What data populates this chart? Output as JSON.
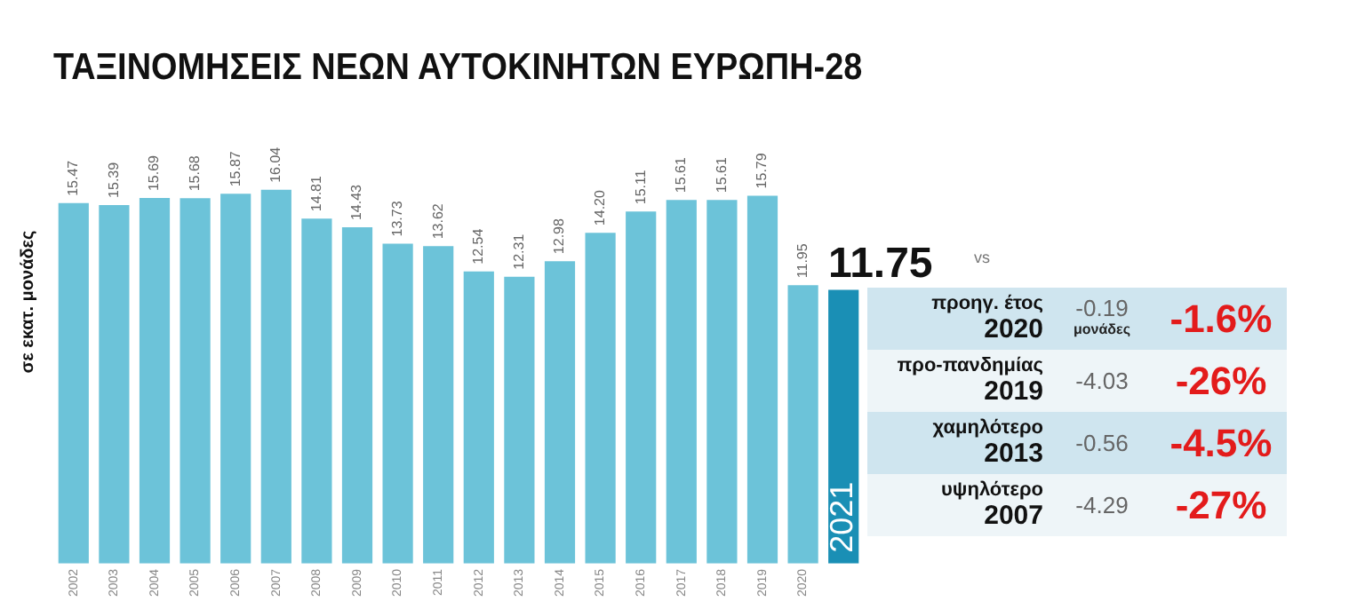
{
  "chart_data": {
    "type": "bar",
    "title": "ΤΑΞΙΝΟΜΗΣΕΙΣ ΝΕΩΝ ΑΥΤΟΚΙΝΗΤΩΝ ΕΥΡΩΠΗ-28",
    "ylabel": "σε εκατ. μονάδες",
    "categories": [
      "2002",
      "2003",
      "2004",
      "2005",
      "2006",
      "2007",
      "2008",
      "2009",
      "2010",
      "2011",
      "2012",
      "2013",
      "2014",
      "2015",
      "2016",
      "2017",
      "2018",
      "2019",
      "2020",
      "2021"
    ],
    "values": [
      15.47,
      15.39,
      15.69,
      15.68,
      15.87,
      16.04,
      14.81,
      14.43,
      13.73,
      13.62,
      12.54,
      12.31,
      12.98,
      14.2,
      15.11,
      15.61,
      15.61,
      15.79,
      11.95,
      11.75
    ],
    "colors": [
      "#6cc3d9",
      "#6cc3d9",
      "#6cc3d9",
      "#6cc3d9",
      "#6cc3d9",
      "#6cc3d9",
      "#6cc3d9",
      "#6cc3d9",
      "#6cc3d9",
      "#6cc3d9",
      "#6cc3d9",
      "#6cc3d9",
      "#6cc3d9",
      "#6cc3d9",
      "#6cc3d9",
      "#6cc3d9",
      "#6cc3d9",
      "#6cc3d9",
      "#6cc3d9",
      "#1a8fb5"
    ],
    "value_labels": [
      "15.47",
      "15.39",
      "15.69",
      "15.68",
      "15.87",
      "16.04",
      "14.81",
      "14.43",
      "13.73",
      "13.62",
      "12.54",
      "12.31",
      "12.98",
      "14.20",
      "15.11",
      "15.61",
      "15.61",
      "15.79",
      "11.95",
      "11.75"
    ],
    "tick_labels": "x",
    "grid": false,
    "legend": false,
    "annotations": [
      "vs",
      "προηγ. έτος 2020",
      "-0.19 μονάδες",
      "-1.6%",
      "προ-πανδημίας 2019",
      "-4.03",
      "-26%",
      "χαμηλότερο 2013",
      "-0.56",
      "-4.5%",
      "υψηλότερο 2007",
      "-4.29",
      "-27%"
    ]
  }
}
